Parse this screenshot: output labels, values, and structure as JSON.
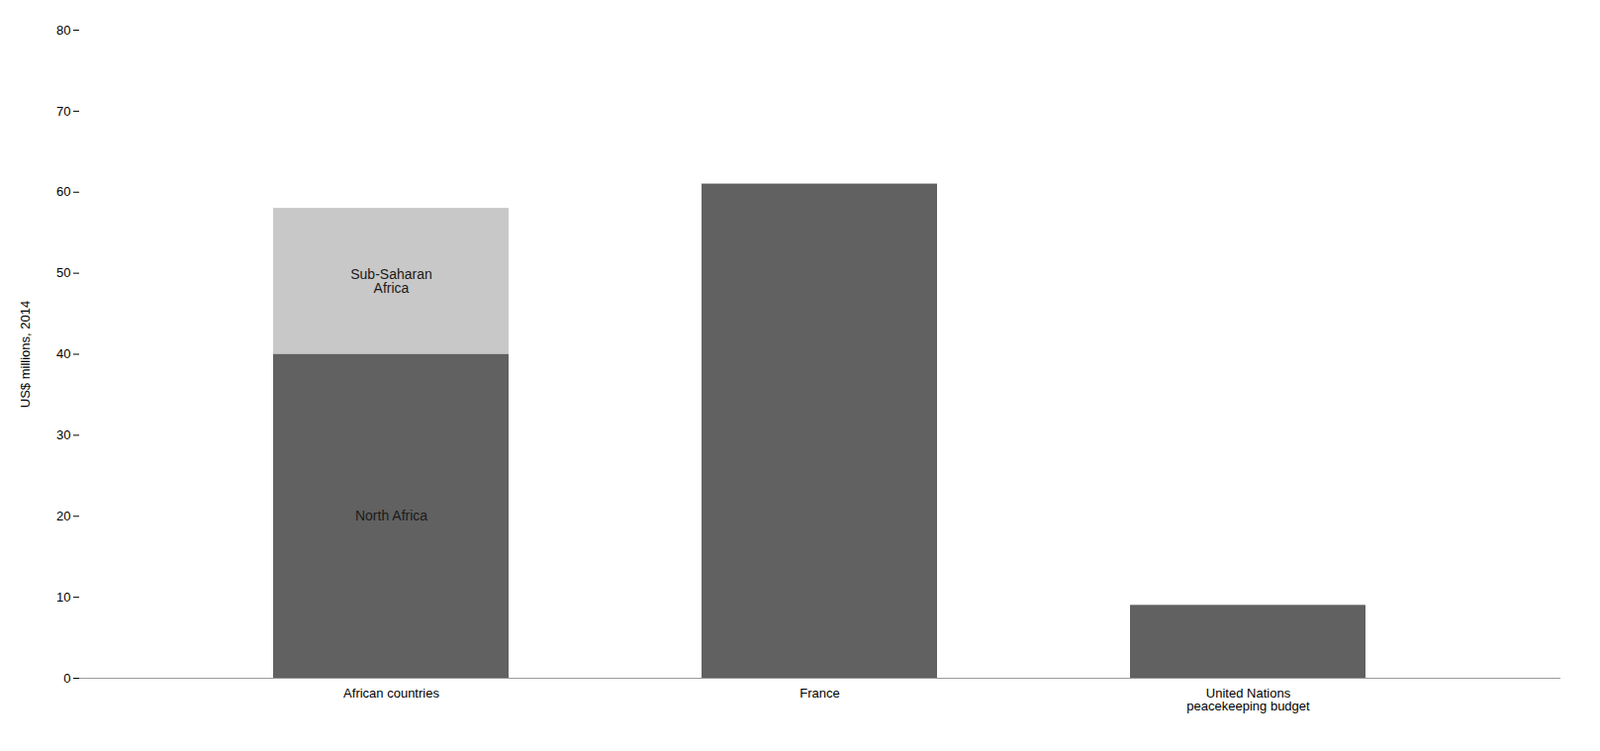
{
  "chart_data": {
    "type": "bar",
    "stacked": true,
    "categories": [
      "African countries",
      "France",
      "United Nations\npeacekeeping budget"
    ],
    "series": [
      {
        "name": "North Africa",
        "color": "#616161",
        "values": [
          40,
          61,
          9
        ]
      },
      {
        "name": "Sub-Saharan\nAfrica",
        "color": "#c8c8c8",
        "values": [
          18,
          null,
          null
        ]
      }
    ],
    "ylabel": "US$ millions, 2014",
    "ylim": [
      0,
      80
    ],
    "yticks": [
      0,
      10,
      20,
      30,
      40,
      50,
      60,
      70,
      80
    ]
  }
}
